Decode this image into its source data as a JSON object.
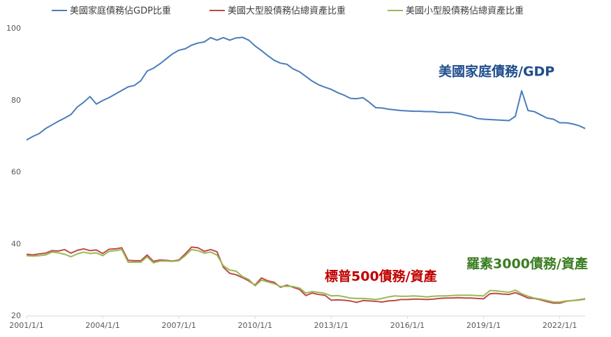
{
  "chart_data": {
    "type": "line",
    "x": [
      2001,
      2001.25,
      2001.5,
      2001.75,
      2002,
      2002.25,
      2002.5,
      2002.75,
      2003,
      2003.25,
      2003.5,
      2003.75,
      2004,
      2004.25,
      2004.5,
      2004.75,
      2005,
      2005.25,
      2005.5,
      2005.75,
      2006,
      2006.25,
      2006.5,
      2006.75,
      2007,
      2007.25,
      2007.5,
      2007.75,
      2008,
      2008.25,
      2008.5,
      2008.75,
      2009,
      2009.25,
      2009.5,
      2009.75,
      2010,
      2010.25,
      2010.5,
      2010.75,
      2011,
      2011.25,
      2011.5,
      2011.75,
      2012,
      2012.25,
      2012.5,
      2012.75,
      2013,
      2013.25,
      2013.5,
      2013.75,
      2014,
      2014.25,
      2014.5,
      2014.75,
      2015,
      2015.25,
      2015.5,
      2015.75,
      2016,
      2016.25,
      2016.5,
      2016.75,
      2017,
      2017.25,
      2017.5,
      2017.75,
      2018,
      2018.25,
      2018.5,
      2018.75,
      2019,
      2019.25,
      2019.5,
      2019.75,
      2020,
      2020.25,
      2020.5,
      2020.75,
      2021,
      2021.25,
      2021.5,
      2021.75,
      2022,
      2022.25,
      2022.5,
      2022.75,
      2023
    ],
    "series": [
      {
        "name": "美國家庭債務佔GDP比重",
        "color": "#4a7ebb",
        "values": [
          69,
          70,
          70.8,
          72.2,
          73.2,
          74.2,
          75.1,
          76.1,
          78.2,
          79.5,
          81.1,
          79.0,
          80.0,
          80.8,
          81.8,
          82.8,
          83.8,
          84.2,
          85.5,
          88.2,
          89.0,
          90.2,
          91.6,
          93.0,
          94.0,
          94.4,
          95.4,
          96.0,
          96.3,
          97.5,
          96.8,
          97.5,
          96.8,
          97.4,
          97.6,
          96.8,
          95.2,
          93.9,
          92.5,
          91.2,
          90.4,
          90.1,
          88.8,
          88.0,
          86.7,
          85.4,
          84.4,
          83.7,
          83.1,
          82.2,
          81.5,
          80.6,
          80.5,
          80.8,
          79.5,
          78.0,
          77.9,
          77.6,
          77.4,
          77.2,
          77.1,
          77.0,
          77.0,
          76.9,
          76.9,
          76.7,
          76.7,
          76.7,
          76.4,
          76.0,
          75.6,
          75.0,
          74.8,
          74.7,
          74.6,
          74.5,
          74.4,
          75.6,
          82.7,
          77.2,
          76.9,
          76.0,
          75.1,
          74.8,
          73.8,
          73.8,
          73.5,
          73.0,
          72.2
        ]
      },
      {
        "name": "美國大型股債務佔總資產比重",
        "color": "#be4b48",
        "values": [
          37.2,
          37.0,
          37.3,
          37.5,
          38.2,
          38.1,
          38.5,
          37.5,
          38.3,
          38.7,
          38.2,
          38.4,
          37.4,
          38.6,
          38.7,
          39.0,
          35.5,
          35.4,
          35.4,
          37.0,
          35.2,
          35.6,
          35.5,
          35.3,
          35.6,
          37.3,
          39.2,
          39.0,
          38.0,
          38.5,
          37.9,
          33.6,
          31.9,
          31.5,
          30.7,
          29.8,
          28.6,
          30.6,
          29.8,
          29.4,
          28.0,
          28.6,
          28.0,
          27.4,
          25.7,
          26.4,
          26.0,
          25.8,
          24.4,
          24.5,
          24.4,
          24.2,
          23.8,
          24.3,
          24.2,
          24.1,
          23.9,
          24.2,
          24.3,
          24.6,
          24.6,
          24.7,
          24.7,
          24.6,
          24.7,
          24.9,
          25.0,
          25.0,
          25.1,
          25.0,
          25.0,
          24.9,
          24.8,
          26.2,
          26.3,
          26.1,
          26.0,
          26.5,
          25.8,
          25.0,
          24.9,
          24.5,
          24.0,
          23.6,
          23.6,
          24.1,
          24.3,
          24.5,
          24.8
        ]
      },
      {
        "name": "美國小型股債務佔總資產比重",
        "color": "#98b954",
        "values": [
          36.8,
          36.7,
          36.8,
          37.0,
          37.8,
          37.6,
          37.2,
          36.5,
          37.3,
          37.8,
          37.4,
          37.6,
          36.8,
          38.0,
          38.2,
          38.5,
          35.0,
          35.0,
          35.0,
          36.5,
          34.8,
          35.3,
          35.3,
          35.2,
          35.4,
          36.8,
          38.5,
          38.2,
          37.5,
          37.8,
          37.0,
          34.0,
          32.8,
          32.5,
          31.0,
          30.2,
          28.4,
          30.0,
          29.5,
          29.0,
          28.2,
          28.3,
          28.2,
          27.8,
          26.4,
          26.8,
          26.6,
          26.3,
          25.6,
          25.7,
          25.4,
          25.0,
          24.9,
          24.9,
          24.8,
          24.6,
          24.9,
          25.3,
          25.6,
          25.5,
          25.5,
          25.6,
          25.5,
          25.3,
          25.5,
          25.6,
          25.6,
          25.7,
          25.8,
          25.8,
          25.8,
          25.7,
          25.6,
          27.1,
          27.0,
          26.8,
          26.6,
          27.2,
          26.2,
          25.5,
          25.0,
          24.7,
          24.3,
          23.9,
          23.9,
          24.2,
          24.3,
          24.4,
          24.7
        ]
      }
    ],
    "xlim": [
      2001,
      2023
    ],
    "xticks": [
      {
        "value": 2001,
        "label": "2001/1/1"
      },
      {
        "value": 2004,
        "label": "2004/1/1"
      },
      {
        "value": 2007,
        "label": "2007/1/1"
      },
      {
        "value": 2010,
        "label": "2010/1/1"
      },
      {
        "value": 2013,
        "label": "2013/1/1"
      },
      {
        "value": 2016,
        "label": "2016/1/1"
      },
      {
        "value": 2019,
        "label": "2019/1/1"
      },
      {
        "value": 2022,
        "label": "2022/1/1"
      }
    ],
    "ylim": [
      20,
      100
    ],
    "yticks": [
      20,
      40,
      60,
      80,
      100
    ],
    "legend": "top",
    "annotations": [
      "美國家庭債務/GDP",
      "標普500債務/資產",
      "羅素3000債務/資產"
    ]
  }
}
